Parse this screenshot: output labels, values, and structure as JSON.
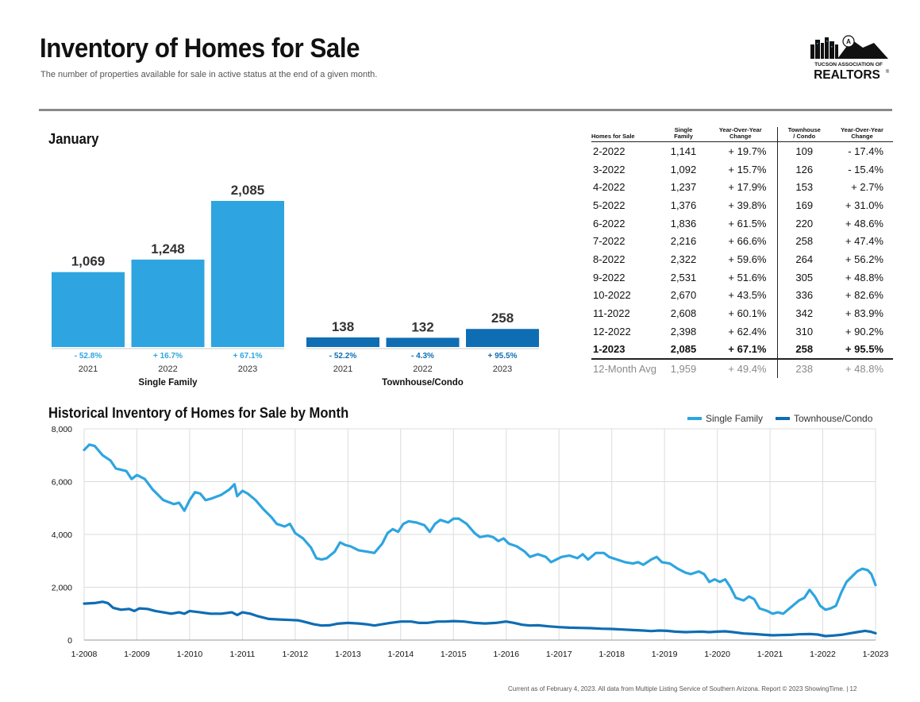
{
  "header": {
    "title": "Inventory of Homes for Sale",
    "subtitle": "The number of properties available for sale in active status at the end of a given month.",
    "logo_line1": "TUCSON ASSOCIATION OF",
    "logo_line2": "REALTORS",
    "logo_mark": "®",
    "logo_badge": "A"
  },
  "month_label": "January",
  "colors": {
    "single_family": "#2ea5e0",
    "townhouse": "#0f6db3",
    "rule": "#8a8a8a"
  },
  "chart_data": [
    {
      "type": "bar",
      "title": "January",
      "groups": [
        {
          "name": "Single Family",
          "categories": [
            "2021",
            "2022",
            "2023"
          ],
          "values": [
            1069,
            1248,
            2085
          ],
          "value_labels": [
            "1,069",
            "1,248",
            "2,085"
          ],
          "change_labels": [
            "- 52.8%",
            "+ 16.7%",
            "+ 67.1%"
          ]
        },
        {
          "name": "Townhouse/Condo",
          "categories": [
            "2021",
            "2022",
            "2023"
          ],
          "values": [
            138,
            132,
            258
          ],
          "value_labels": [
            "138",
            "132",
            "258"
          ],
          "change_labels": [
            "- 52.2%",
            "- 4.3%",
            "+ 95.5%"
          ]
        }
      ]
    },
    {
      "type": "line",
      "title": "Historical Inventory of Homes for Sale by Month",
      "ylim": [
        0,
        8000
      ],
      "yticks": [
        0,
        2000,
        4000,
        6000,
        8000
      ],
      "ytick_labels": [
        "0",
        "2,000",
        "4,000",
        "6,000",
        "8,000"
      ],
      "xtick_labels": [
        "1-2008",
        "1-2009",
        "1-2010",
        "1-2011",
        "1-2012",
        "1-2013",
        "1-2014",
        "1-2015",
        "1-2016",
        "1-2017",
        "1-2018",
        "1-2019",
        "1-2020",
        "1-2021",
        "1-2022",
        "1-2023"
      ],
      "x_start": "1-2008",
      "x_end": "1-2023",
      "grid": true,
      "legend_position": "top-right",
      "series": [
        {
          "name": "Single Family",
          "knots": [
            [
              0,
              7200
            ],
            [
              0.1,
              7400
            ],
            [
              0.2,
              7350
            ],
            [
              0.35,
              7000
            ],
            [
              0.5,
              6800
            ],
            [
              0.6,
              6500
            ],
            [
              0.8,
              6400
            ],
            [
              0.9,
              6100
            ],
            [
              1.0,
              6250
            ],
            [
              1.15,
              6100
            ],
            [
              1.3,
              5700
            ],
            [
              1.5,
              5300
            ],
            [
              1.7,
              5150
            ],
            [
              1.8,
              5200
            ],
            [
              1.9,
              4900
            ],
            [
              2.0,
              5300
            ],
            [
              2.1,
              5600
            ],
            [
              2.2,
              5550
            ],
            [
              2.3,
              5300
            ],
            [
              2.4,
              5350
            ],
            [
              2.6,
              5500
            ],
            [
              2.75,
              5700
            ],
            [
              2.85,
              5900
            ],
            [
              2.9,
              5450
            ],
            [
              3.0,
              5650
            ],
            [
              3.1,
              5550
            ],
            [
              3.25,
              5300
            ],
            [
              3.4,
              4950
            ],
            [
              3.55,
              4650
            ],
            [
              3.65,
              4400
            ],
            [
              3.8,
              4300
            ],
            [
              3.9,
              4400
            ],
            [
              4.0,
              4050
            ],
            [
              4.15,
              3850
            ],
            [
              4.3,
              3500
            ],
            [
              4.4,
              3100
            ],
            [
              4.5,
              3050
            ],
            [
              4.6,
              3100
            ],
            [
              4.75,
              3350
            ],
            [
              4.85,
              3700
            ],
            [
              4.95,
              3600
            ],
            [
              5.05,
              3550
            ],
            [
              5.2,
              3400
            ],
            [
              5.35,
              3350
            ],
            [
              5.5,
              3300
            ],
            [
              5.65,
              3650
            ],
            [
              5.75,
              4050
            ],
            [
              5.85,
              4200
            ],
            [
              5.95,
              4100
            ],
            [
              6.05,
              4400
            ],
            [
              6.15,
              4500
            ],
            [
              6.3,
              4450
            ],
            [
              6.45,
              4350
            ],
            [
              6.55,
              4100
            ],
            [
              6.65,
              4400
            ],
            [
              6.75,
              4550
            ],
            [
              6.9,
              4450
            ],
            [
              7.0,
              4600
            ],
            [
              7.1,
              4600
            ],
            [
              7.25,
              4400
            ],
            [
              7.4,
              4050
            ],
            [
              7.5,
              3900
            ],
            [
              7.65,
              3950
            ],
            [
              7.75,
              3900
            ],
            [
              7.85,
              3750
            ],
            [
              7.95,
              3850
            ],
            [
              8.05,
              3650
            ],
            [
              8.2,
              3550
            ],
            [
              8.35,
              3350
            ],
            [
              8.45,
              3150
            ],
            [
              8.6,
              3250
            ],
            [
              8.75,
              3150
            ],
            [
              8.85,
              2950
            ],
            [
              8.95,
              3050
            ],
            [
              9.05,
              3150
            ],
            [
              9.2,
              3200
            ],
            [
              9.35,
              3100
            ],
            [
              9.45,
              3250
            ],
            [
              9.55,
              3050
            ],
            [
              9.7,
              3300
            ],
            [
              9.85,
              3300
            ],
            [
              9.95,
              3150
            ],
            [
              10.1,
              3050
            ],
            [
              10.25,
              2950
            ],
            [
              10.4,
              2900
            ],
            [
              10.5,
              2950
            ],
            [
              10.6,
              2850
            ],
            [
              10.75,
              3050
            ],
            [
              10.85,
              3150
            ],
            [
              10.95,
              2950
            ],
            [
              11.1,
              2900
            ],
            [
              11.25,
              2700
            ],
            [
              11.4,
              2550
            ],
            [
              11.5,
              2500
            ],
            [
              11.65,
              2600
            ],
            [
              11.75,
              2500
            ],
            [
              11.85,
              2200
            ],
            [
              11.95,
              2300
            ],
            [
              12.05,
              2200
            ],
            [
              12.15,
              2300
            ],
            [
              12.25,
              2000
            ],
            [
              12.35,
              1600
            ],
            [
              12.5,
              1500
            ],
            [
              12.6,
              1650
            ],
            [
              12.7,
              1550
            ],
            [
              12.8,
              1200
            ],
            [
              12.95,
              1100
            ],
            [
              13.05,
              1000
            ],
            [
              13.15,
              1050
            ],
            [
              13.25,
              1000
            ],
            [
              13.4,
              1250
            ],
            [
              13.55,
              1500
            ],
            [
              13.65,
              1600
            ],
            [
              13.75,
              1900
            ],
            [
              13.85,
              1650
            ],
            [
              13.95,
              1300
            ],
            [
              14.05,
              1150
            ],
            [
              14.15,
              1200
            ],
            [
              14.25,
              1300
            ],
            [
              14.35,
              1800
            ],
            [
              14.45,
              2200
            ],
            [
              14.55,
              2400
            ],
            [
              14.65,
              2600
            ],
            [
              14.75,
              2700
            ],
            [
              14.85,
              2650
            ],
            [
              14.92,
              2500
            ],
            [
              15.0,
              2085
            ]
          ]
        },
        {
          "name": "Townhouse/Condo",
          "knots": [
            [
              0,
              1380
            ],
            [
              0.2,
              1400
            ],
            [
              0.35,
              1450
            ],
            [
              0.45,
              1400
            ],
            [
              0.55,
              1220
            ],
            [
              0.7,
              1150
            ],
            [
              0.85,
              1180
            ],
            [
              0.95,
              1100
            ],
            [
              1.05,
              1200
            ],
            [
              1.2,
              1180
            ],
            [
              1.35,
              1100
            ],
            [
              1.5,
              1050
            ],
            [
              1.65,
              1000
            ],
            [
              1.8,
              1050
            ],
            [
              1.9,
              1000
            ],
            [
              2.0,
              1100
            ],
            [
              2.2,
              1050
            ],
            [
              2.4,
              1000
            ],
            [
              2.6,
              1000
            ],
            [
              2.8,
              1050
            ],
            [
              2.9,
              950
            ],
            [
              3.0,
              1050
            ],
            [
              3.15,
              1000
            ],
            [
              3.3,
              900
            ],
            [
              3.5,
              800
            ],
            [
              3.7,
              780
            ],
            [
              3.9,
              760
            ],
            [
              4.05,
              750
            ],
            [
              4.2,
              680
            ],
            [
              4.35,
              600
            ],
            [
              4.5,
              550
            ],
            [
              4.65,
              560
            ],
            [
              4.8,
              620
            ],
            [
              5.0,
              650
            ],
            [
              5.2,
              630
            ],
            [
              5.35,
              600
            ],
            [
              5.5,
              550
            ],
            [
              5.65,
              600
            ],
            [
              5.8,
              650
            ],
            [
              6.0,
              700
            ],
            [
              6.2,
              700
            ],
            [
              6.35,
              650
            ],
            [
              6.5,
              650
            ],
            [
              6.7,
              700
            ],
            [
              6.85,
              700
            ],
            [
              7.0,
              720
            ],
            [
              7.2,
              700
            ],
            [
              7.4,
              650
            ],
            [
              7.6,
              630
            ],
            [
              7.8,
              650
            ],
            [
              8.0,
              700
            ],
            [
              8.15,
              650
            ],
            [
              8.3,
              580
            ],
            [
              8.45,
              550
            ],
            [
              8.6,
              560
            ],
            [
              8.8,
              520
            ],
            [
              9.0,
              490
            ],
            [
              9.2,
              470
            ],
            [
              9.4,
              460
            ],
            [
              9.6,
              450
            ],
            [
              9.8,
              430
            ],
            [
              10.0,
              420
            ],
            [
              10.2,
              400
            ],
            [
              10.4,
              380
            ],
            [
              10.6,
              360
            ],
            [
              10.75,
              340
            ],
            [
              10.9,
              360
            ],
            [
              11.05,
              350
            ],
            [
              11.2,
              320
            ],
            [
              11.4,
              300
            ],
            [
              11.55,
              310
            ],
            [
              11.7,
              320
            ],
            [
              11.85,
              300
            ],
            [
              12.0,
              320
            ],
            [
              12.15,
              330
            ],
            [
              12.3,
              300
            ],
            [
              12.5,
              250
            ],
            [
              12.7,
              230
            ],
            [
              12.9,
              200
            ],
            [
              13.05,
              180
            ],
            [
              13.2,
              190
            ],
            [
              13.4,
              200
            ],
            [
              13.55,
              220
            ],
            [
              13.75,
              230
            ],
            [
              13.9,
              210
            ],
            [
              14.05,
              150
            ],
            [
              14.2,
              170
            ],
            [
              14.35,
              200
            ],
            [
              14.5,
              250
            ],
            [
              14.65,
              300
            ],
            [
              14.8,
              350
            ],
            [
              14.9,
              320
            ],
            [
              15.0,
              258
            ]
          ]
        }
      ]
    }
  ],
  "table": {
    "headers": [
      [
        "Homes for Sale"
      ],
      [
        "Single",
        "Family"
      ],
      [
        "Year-Over-Year",
        "Change"
      ],
      [
        "Townhouse",
        "/ Condo"
      ],
      [
        "Year-Over-Year",
        "Change"
      ]
    ],
    "rows": [
      [
        "2-2022",
        "1,141",
        "+ 19.7%",
        "109",
        "- 17.4%"
      ],
      [
        "3-2022",
        "1,092",
        "+ 15.7%",
        "126",
        "- 15.4%"
      ],
      [
        "4-2022",
        "1,237",
        "+ 17.9%",
        "153",
        "+ 2.7%"
      ],
      [
        "5-2022",
        "1,376",
        "+ 39.8%",
        "169",
        "+ 31.0%"
      ],
      [
        "6-2022",
        "1,836",
        "+ 61.5%",
        "220",
        "+ 48.6%"
      ],
      [
        "7-2022",
        "2,216",
        "+ 66.6%",
        "258",
        "+ 47.4%"
      ],
      [
        "8-2022",
        "2,322",
        "+ 59.6%",
        "264",
        "+ 56.2%"
      ],
      [
        "9-2022",
        "2,531",
        "+ 51.6%",
        "305",
        "+ 48.8%"
      ],
      [
        "10-2022",
        "2,670",
        "+ 43.5%",
        "336",
        "+ 82.6%"
      ],
      [
        "11-2022",
        "2,608",
        "+ 60.1%",
        "342",
        "+ 83.9%"
      ],
      [
        "12-2022",
        "2,398",
        "+ 62.4%",
        "310",
        "+ 90.2%"
      ],
      [
        "1-2023",
        "2,085",
        "+ 67.1%",
        "258",
        "+ 95.5%"
      ]
    ],
    "avg_row": [
      "12-Month Avg",
      "1,959",
      "+ 49.4%",
      "238",
      "+ 48.8%"
    ]
  },
  "historical_title": "Historical Inventory of Homes for Sale by Month",
  "footer": "Current as of February 4, 2023. All data from Multiple Listing Service of Southern Arizona. Report © 2023 ShowingTime.  |  12"
}
